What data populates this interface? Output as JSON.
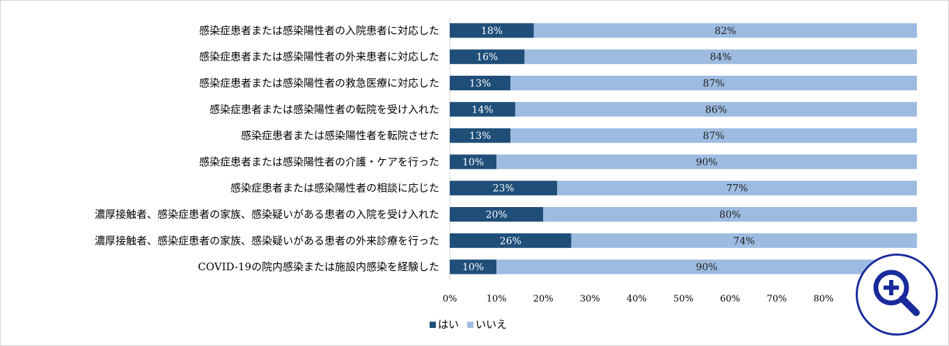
{
  "chart_data": {
    "type": "bar",
    "orientation": "horizontal",
    "stacked": true,
    "categories": [
      "感染症患者または感染陽性者の入院患者に対応した",
      "感染症患者または感染陽性者の外来患者に対応した",
      "感染症患者または感染陽性者の救急医療に対応した",
      "感染症患者または感染陽性者の転院を受け入れた",
      "感染症患者または感染陽性者を転院させた",
      "感染症患者または感染陽性者の介護・ケアを行った",
      "感染症患者または感染陽性者の相談に応じた",
      "濃厚接触者、感染症患者の家族、感染疑いがある患者の入院を受け入れた",
      "濃厚接触者、感染症患者の家族、感染疑いがある患者の外来診療を行った",
      "COVID-19の院内感染または施設内感染を経験した"
    ],
    "series": [
      {
        "name": "はい",
        "values": [
          18,
          16,
          13,
          14,
          13,
          10,
          23,
          20,
          26,
          10
        ],
        "labels": [
          "18%",
          "16%",
          "13%",
          "14%",
          "13%",
          "10%",
          "23%",
          "20%",
          "26%",
          "10%"
        ],
        "color": "#1f4e79"
      },
      {
        "name": "いいえ",
        "values": [
          82,
          84,
          87,
          86,
          87,
          90,
          77,
          80,
          74,
          90
        ],
        "labels": [
          "82%",
          "84%",
          "87%",
          "86%",
          "87%",
          "90%",
          "77%",
          "80%",
          "74%",
          "90%"
        ],
        "color": "#9dbbe0"
      }
    ],
    "xlim": [
      0,
      100
    ],
    "x_ticks": [
      "0%",
      "10%",
      "20%",
      "30%",
      "40%",
      "50%",
      "60%",
      "70%",
      "80%"
    ],
    "legend": "bottom-left",
    "grid": false
  },
  "overlay": {
    "zoom_icon": "zoom-in-magnifier-icon",
    "accent_color": "#1a2a9c"
  }
}
